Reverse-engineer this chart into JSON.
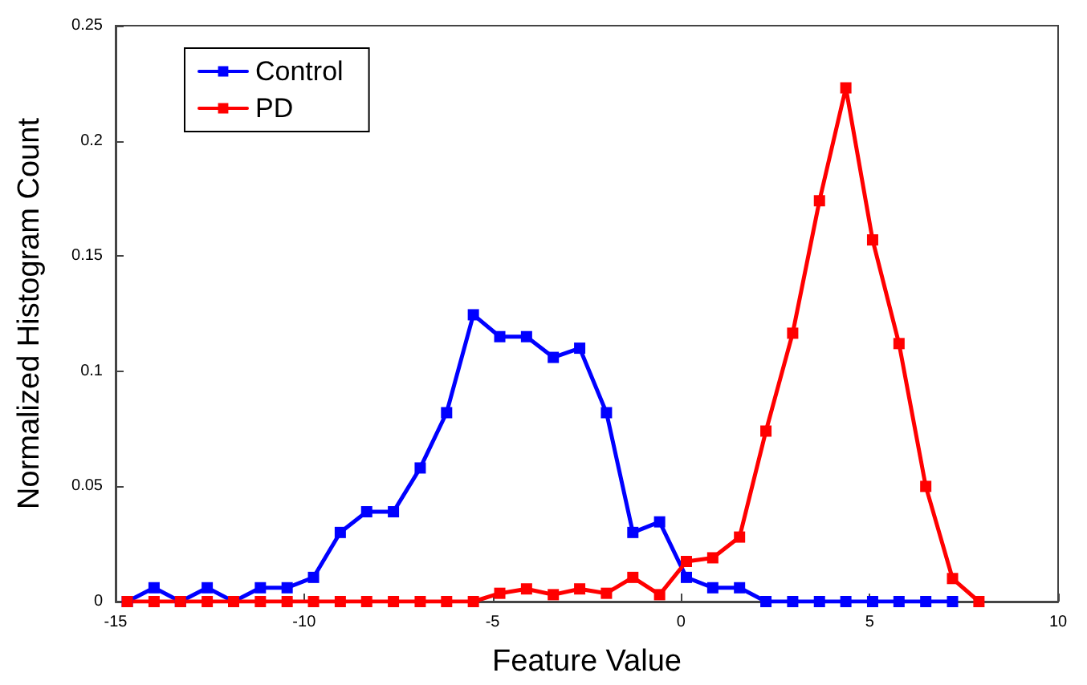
{
  "chart_data": {
    "type": "line",
    "xlabel": "Feature Value",
    "ylabel": "Normalized Histogram Count",
    "x": [
      -14.69,
      -13.98,
      -13.28,
      -12.57,
      -11.87,
      -11.16,
      -10.45,
      -9.75,
      -9.04,
      -8.34,
      -7.63,
      -6.92,
      -6.22,
      -5.51,
      -4.81,
      -4.1,
      -3.39,
      -2.69,
      -1.98,
      -1.28,
      -0.57,
      0.14,
      0.84,
      1.55,
      2.25,
      2.96,
      3.67,
      4.37,
      5.08,
      5.78,
      6.49,
      7.2,
      7.9
    ],
    "series": [
      {
        "name": "Control",
        "color": "#0000ff",
        "values": [
          0,
          0.006,
          0,
          0.006,
          0,
          0.006,
          0.006,
          0.0105,
          0.03,
          0.039,
          0.039,
          0.058,
          0.082,
          0.1245,
          0.115,
          0.115,
          0.106,
          0.11,
          0.082,
          0.03,
          0.0346,
          0.0105,
          0.006,
          0.006,
          0,
          0,
          0,
          0,
          0,
          0,
          0,
          0,
          null
        ]
      },
      {
        "name": "PD",
        "color": "#ff0000",
        "values": [
          0,
          0,
          0,
          0,
          0,
          0,
          0,
          0,
          0,
          0,
          0,
          0,
          0,
          0,
          0.0036,
          0.0055,
          0.003,
          0.0055,
          0.0036,
          0.0105,
          0.003,
          0.0174,
          0.019,
          0.028,
          0.074,
          0.1165,
          0.174,
          0.223,
          0.157,
          0.112,
          0.05,
          0.01,
          0
        ]
      }
    ],
    "xlim": [
      -15,
      10
    ],
    "xticks": [
      -15,
      -10,
      -5,
      0,
      5,
      10
    ],
    "ylim": [
      0,
      0.25
    ],
    "yticks": [
      0,
      0.05,
      0.1,
      0.15,
      0.2,
      0.25
    ],
    "grid": false,
    "legend": "top left",
    "marker": "square",
    "line_style": "solid"
  }
}
